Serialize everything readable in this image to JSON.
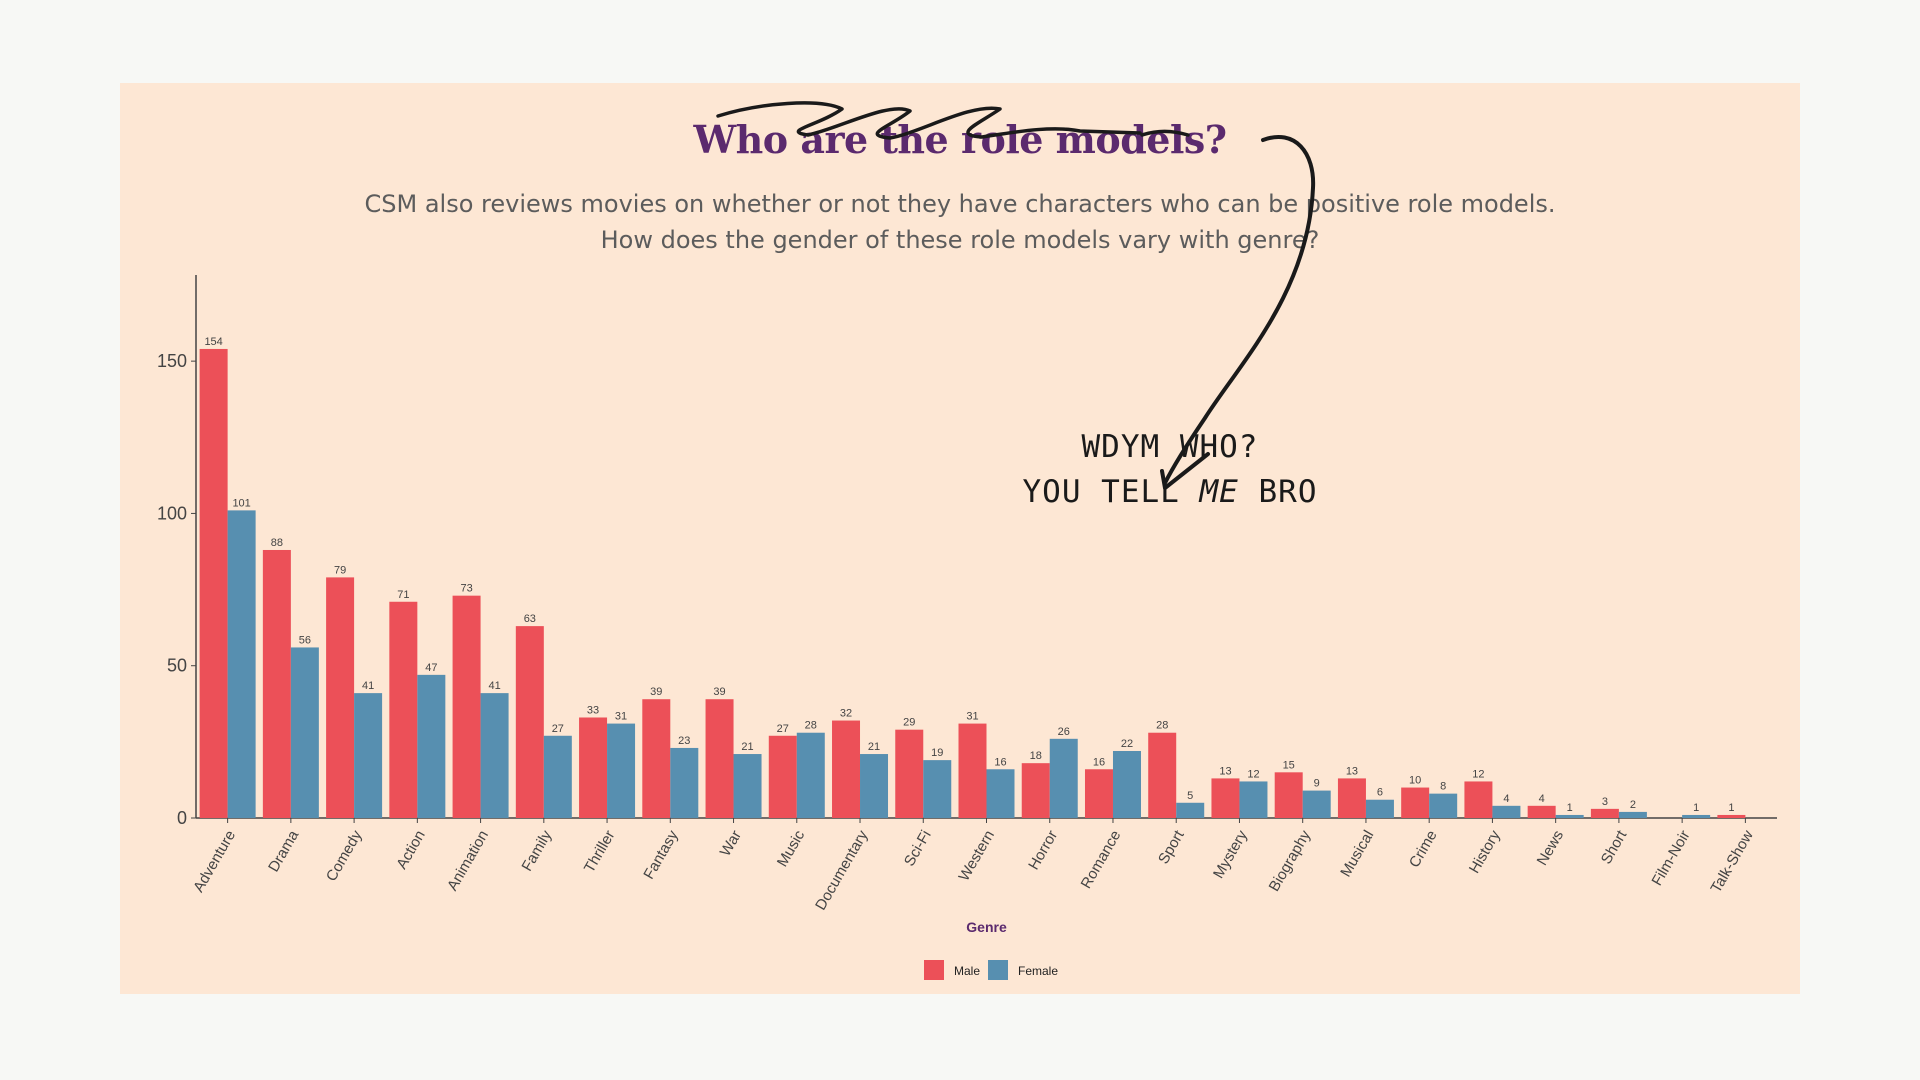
{
  "title": "Who are the role models?",
  "subtitle": [
    "CSM also reviews movies on whether or not they have characters who can be positive role models.",
    "How does the gender of these role models vary with genre?"
  ],
  "annotation": {
    "line1": "WDYM WHO?",
    "line2_pre": "YOU TELL ",
    "line2_em": "ME",
    "line2_post": " BRO"
  },
  "colors": {
    "male": "#ec5058",
    "female": "#578fb0",
    "title": "#5b2a6e",
    "panel": "#fde7d4"
  },
  "chart_data": {
    "type": "bar",
    "title": "",
    "xlabel": "Genre",
    "ylabel": "",
    "ylim": [
      0,
      175
    ],
    "yticks": [
      0,
      50,
      100,
      150
    ],
    "categories": [
      "Adventure",
      "Drama",
      "Comedy",
      "Action",
      "Animation",
      "Family",
      "Thriller",
      "Fantasy",
      "War",
      "Music",
      "Documentary",
      "Sci-Fi",
      "Western",
      "Horror",
      "Romance",
      "Sport",
      "Mystery",
      "Biography",
      "Musical",
      "Crime",
      "History",
      "News",
      "Short",
      "Film-Noir",
      "Talk-Show"
    ],
    "series": [
      {
        "name": "Male",
        "color": "#ec5058",
        "values": [
          154,
          88,
          79,
          71,
          73,
          63,
          33,
          39,
          39,
          27,
          32,
          29,
          31,
          18,
          16,
          28,
          13,
          15,
          13,
          10,
          12,
          4,
          3,
          null,
          1
        ]
      },
      {
        "name": "Female",
        "color": "#578fb0",
        "values": [
          101,
          56,
          41,
          47,
          41,
          27,
          31,
          23,
          21,
          28,
          21,
          19,
          16,
          26,
          22,
          5,
          12,
          9,
          6,
          8,
          4,
          1,
          2,
          1,
          null
        ]
      }
    ],
    "legend_position": "bottom",
    "grid": false
  }
}
